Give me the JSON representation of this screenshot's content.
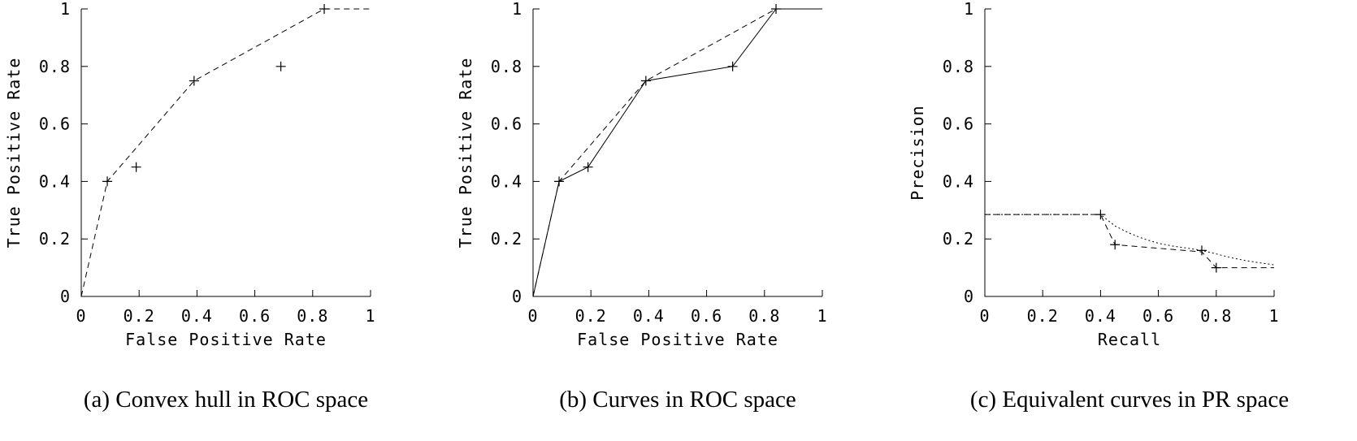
{
  "page": {
    "background_color": "#ffffff",
    "line_color": "#000000"
  },
  "chart_data": [
    {
      "type": "line",
      "caption": "(a) Convex hull in ROC space",
      "xlabel": "False Positive Rate",
      "ylabel": "True Positive Rate",
      "xlim": [
        0,
        1
      ],
      "ylim": [
        0,
        1
      ],
      "xticks": [
        0,
        0.2,
        0.4,
        0.6,
        0.8,
        1
      ],
      "yticks": [
        0,
        0.2,
        0.4,
        0.6,
        0.8,
        1
      ],
      "grid": false,
      "legend": "none",
      "series": [
        {
          "name": "convex-hull",
          "style": "dashed",
          "points": [
            [
              0,
              0
            ],
            [
              0.09,
              0.4
            ],
            [
              0.39,
              0.75
            ],
            [
              0.84,
              1
            ],
            [
              1,
              1
            ]
          ]
        }
      ],
      "markers": [
        [
          0.09,
          0.4
        ],
        [
          0.19,
          0.45
        ],
        [
          0.39,
          0.75
        ],
        [
          0.69,
          0.8
        ],
        [
          0.84,
          1
        ]
      ]
    },
    {
      "type": "line",
      "caption": "(b) Curves in ROC space",
      "xlabel": "False Positive Rate",
      "ylabel": "True Positive Rate",
      "xlim": [
        0,
        1
      ],
      "ylim": [
        0,
        1
      ],
      "xticks": [
        0,
        0.2,
        0.4,
        0.6,
        0.8,
        1
      ],
      "yticks": [
        0,
        0.2,
        0.4,
        0.6,
        0.8,
        1
      ],
      "grid": false,
      "legend": "none",
      "series": [
        {
          "name": "roc-curve",
          "style": "solid",
          "points": [
            [
              0,
              0
            ],
            [
              0.09,
              0.4
            ],
            [
              0.19,
              0.45
            ],
            [
              0.39,
              0.75
            ],
            [
              0.69,
              0.8
            ],
            [
              0.84,
              1
            ],
            [
              1,
              1
            ]
          ]
        },
        {
          "name": "convex-hull",
          "style": "dashed",
          "points": [
            [
              0,
              0
            ],
            [
              0.09,
              0.4
            ],
            [
              0.39,
              0.75
            ],
            [
              0.84,
              1
            ],
            [
              1,
              1
            ]
          ]
        }
      ],
      "markers": [
        [
          0.09,
          0.4
        ],
        [
          0.19,
          0.45
        ],
        [
          0.39,
          0.75
        ],
        [
          0.69,
          0.8
        ],
        [
          0.84,
          1
        ]
      ]
    },
    {
      "type": "line",
      "caption": "(c) Equivalent curves in PR space",
      "xlabel": "Recall",
      "ylabel": "Precision",
      "xlim": [
        0,
        1
      ],
      "ylim": [
        0,
        1
      ],
      "xticks": [
        0,
        0.2,
        0.4,
        0.6,
        0.8,
        1
      ],
      "yticks": [
        0,
        0.2,
        0.4,
        0.6,
        0.8,
        1
      ],
      "grid": false,
      "legend": "none",
      "series": [
        {
          "name": "achievable-pr-curve",
          "style": "dotted",
          "points": [
            [
              0,
              0.285
            ],
            [
              0.4,
              0.285
            ],
            [
              0.45,
              0.245
            ],
            [
              0.5,
              0.22
            ],
            [
              0.55,
              0.2
            ],
            [
              0.6,
              0.185
            ],
            [
              0.65,
              0.175
            ],
            [
              0.7,
              0.168
            ],
            [
              0.75,
              0.16
            ],
            [
              0.8,
              0.148
            ],
            [
              0.85,
              0.135
            ],
            [
              0.9,
              0.125
            ],
            [
              0.95,
              0.117
            ],
            [
              1,
              0.11
            ]
          ]
        },
        {
          "name": "pr-curve",
          "style": "dashed",
          "points": [
            [
              0,
              0.285
            ],
            [
              0.4,
              0.285
            ],
            [
              0.45,
              0.18
            ],
            [
              0.75,
              0.155
            ],
            [
              0.8,
              0.1
            ],
            [
              1,
              0.1
            ]
          ]
        }
      ],
      "markers": [
        [
          0.4,
          0.285
        ],
        [
          0.45,
          0.18
        ],
        [
          0.75,
          0.16
        ],
        [
          0.8,
          0.1
        ]
      ]
    }
  ]
}
